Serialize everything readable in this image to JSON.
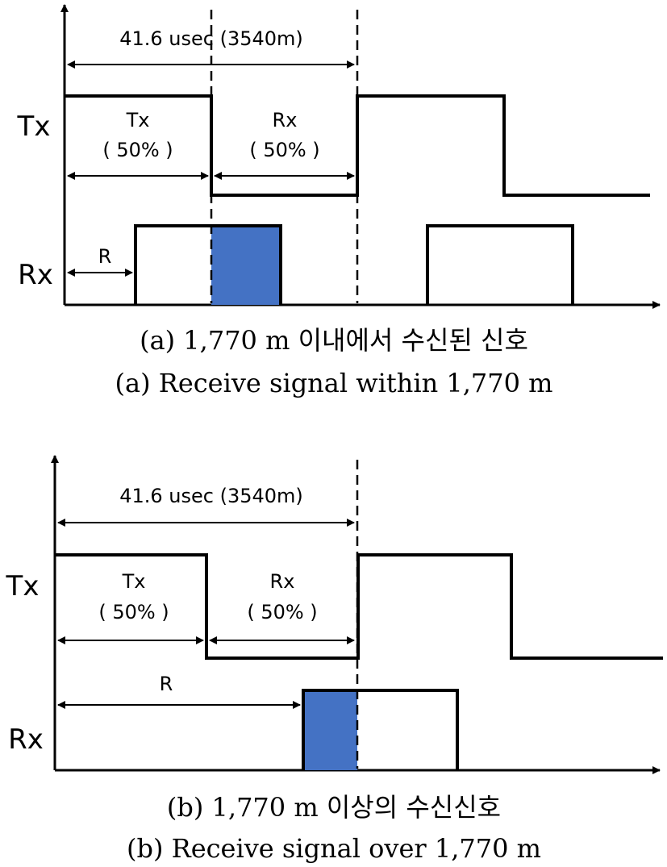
{
  "diagram_a": {
    "period_label": "41.6 usec (3540m)",
    "tx_axis_label": "Tx",
    "rx_axis_label": "Rx",
    "tx_segment_label": "Tx",
    "tx_segment_pct": "( 50% )",
    "rx_segment_label": "Rx",
    "rx_segment_pct": "( 50% )",
    "range_label": "R",
    "caption_korean": "(a) 1,770 m 이내에서 수신된 신호",
    "caption_english": "(a) Receive signal within 1,770 m"
  },
  "diagram_b": {
    "period_label": "41.6 usec (3540m)",
    "tx_axis_label": "Tx",
    "rx_axis_label": "Rx",
    "tx_segment_label": "Tx",
    "tx_segment_pct": "( 50% )",
    "rx_segment_label": "Rx",
    "rx_segment_pct": "( 50% )",
    "range_label": "R",
    "caption_korean": "(b) 1,770 m 이상의 수신신호",
    "caption_english": "(b) Receive signal over 1,770 m"
  },
  "colors": {
    "overlap_fill": "#4472C4",
    "line": "#000000"
  }
}
